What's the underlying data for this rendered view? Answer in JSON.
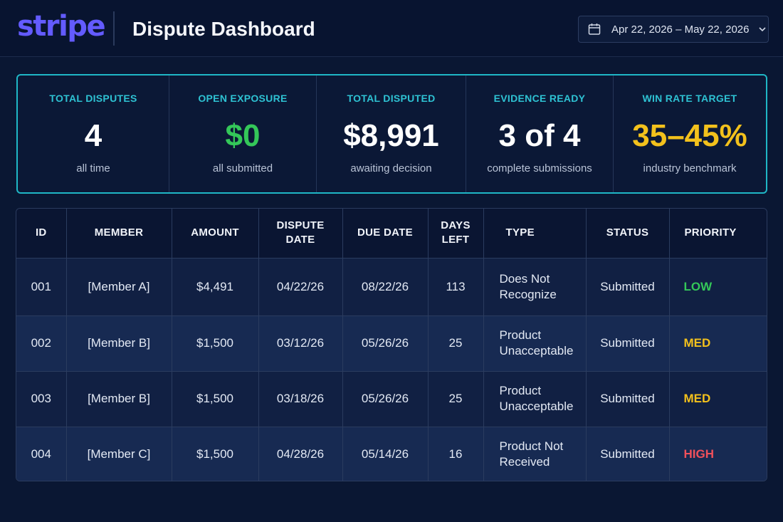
{
  "header": {
    "logo_text": "stripe",
    "title": "Dispute Dashboard",
    "date_range": "Apr 22, 2026 – May 22, 2026",
    "calendar_icon": "calendar-icon",
    "chevron_icon": "chevron-down-icon"
  },
  "stats": [
    {
      "label": "TOTAL DISPUTES",
      "value": "4",
      "sub": "all time",
      "color": "#ffffff"
    },
    {
      "label": "OPEN EXPOSURE",
      "value": "$0",
      "sub": "all submitted",
      "color": "#34c759"
    },
    {
      "label": "TOTAL DISPUTED",
      "value": "$8,991",
      "sub": "awaiting decision",
      "color": "#ffffff"
    },
    {
      "label": "EVIDENCE READY",
      "value": "3 of 4",
      "sub": "complete submissions",
      "color": "#ffffff"
    },
    {
      "label": "WIN RATE TARGET",
      "value": "35–45%",
      "sub": "industry benchmark",
      "color": "#f3c11c"
    }
  ],
  "table": {
    "headers": {
      "id": "ID",
      "member": "MEMBER",
      "amount": "AMOUNT",
      "dispute_date_1": "DISPUTE",
      "dispute_date_2": "DATE",
      "due_date": "DUE DATE",
      "days_left_1": "DAYS",
      "days_left_2": "LEFT",
      "type": "TYPE",
      "status": "STATUS",
      "priority": "PRIORITY"
    },
    "rows": [
      {
        "id": "001",
        "member": "[Member A]",
        "amount": "$4,491",
        "dispute_date": "04/22/26",
        "due_date": "08/22/26",
        "days_left": "113",
        "type_1": "Does Not",
        "type_2": "Recognize",
        "status": "Submitted",
        "priority": "LOW"
      },
      {
        "id": "002",
        "member": "[Member B]",
        "amount": "$1,500",
        "dispute_date": "03/12/26",
        "due_date": "05/26/26",
        "days_left": "25",
        "type_1": "Product",
        "type_2": "Unacceptable",
        "status": "Submitted",
        "priority": "MED"
      },
      {
        "id": "003",
        "member": "[Member B]",
        "amount": "$1,500",
        "dispute_date": "03/18/26",
        "due_date": "05/26/26",
        "days_left": "25",
        "type_1": "Product",
        "type_2": "Unacceptable",
        "status": "Submitted",
        "priority": "MED"
      },
      {
        "id": "004",
        "member": "[Member C]",
        "amount": "$1,500",
        "dispute_date": "04/28/26",
        "due_date": "05/14/26",
        "days_left": "16",
        "type_1": "Product Not",
        "type_2": "Received",
        "status": "Submitted",
        "priority": "HIGH"
      }
    ]
  },
  "colors": {
    "accent": "#2ec2d3",
    "brand": "#635bff",
    "low": "#34c759",
    "med": "#f3c11c",
    "high": "#f0505b"
  }
}
